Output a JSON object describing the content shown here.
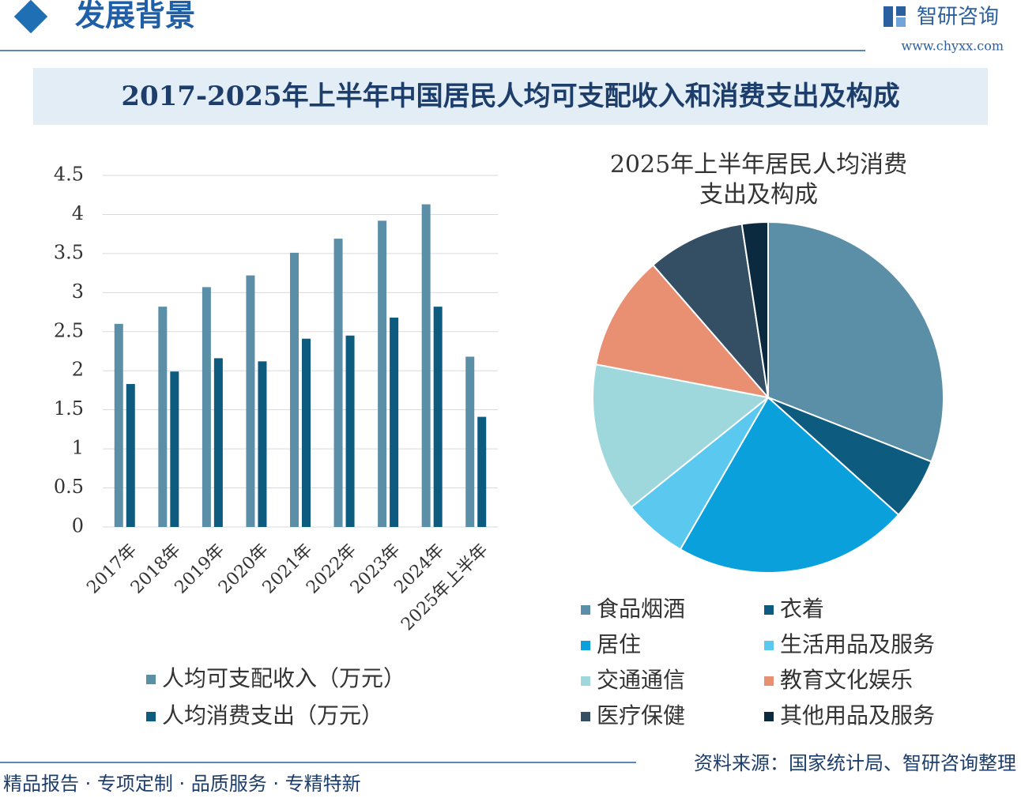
{
  "header": {
    "title": "发展背景",
    "logo": "智研咨询",
    "url": "www.chyxx.com"
  },
  "banner": "2017-2025年上半年中国居民人均可支配收入和消费支出及构成",
  "chart_data": [
    {
      "type": "bar",
      "categories": [
        "2017年",
        "2018年",
        "2019年",
        "2020年",
        "2021年",
        "2022年",
        "2023年",
        "2024年",
        "2025年上半年"
      ],
      "series": [
        {
          "name": "人均可支配收入（万元）",
          "color": "#5b8fa8",
          "values": [
            2.6,
            2.82,
            3.07,
            3.22,
            3.51,
            3.69,
            3.92,
            4.13,
            2.18
          ]
        },
        {
          "name": "人均消费支出（万元）",
          "color": "#0e5b80",
          "values": [
            1.83,
            1.99,
            2.16,
            2.12,
            2.41,
            2.45,
            2.68,
            2.82,
            1.41
          ]
        }
      ],
      "ylim": [
        0,
        4.5
      ],
      "yticks": [
        0,
        0.5,
        1,
        1.5,
        2,
        2.5,
        3,
        3.5,
        4,
        4.5
      ],
      "grid": true
    },
    {
      "type": "pie",
      "title": "2025年上半年居民人均消费支出及构成",
      "categories": [
        "食品烟酒",
        "衣着",
        "居住",
        "生活用品及服务",
        "交通通信",
        "教育文化娱乐",
        "医疗保健",
        "其他用品及服务"
      ],
      "values": [
        31.0,
        5.7,
        21.7,
        5.9,
        13.8,
        10.6,
        9.0,
        2.4
      ],
      "colors": [
        "#5b8fa8",
        "#0e5b80",
        "#0aa0db",
        "#5bc8f0",
        "#9fd8dc",
        "#e98f72",
        "#344f63",
        "#0b2a40"
      ]
    }
  ],
  "footer": {
    "tagline": "精品报告 · 专项定制 · 品质服务 · 专精特新",
    "source": "资料来源：国家统计局、智研咨询整理"
  }
}
